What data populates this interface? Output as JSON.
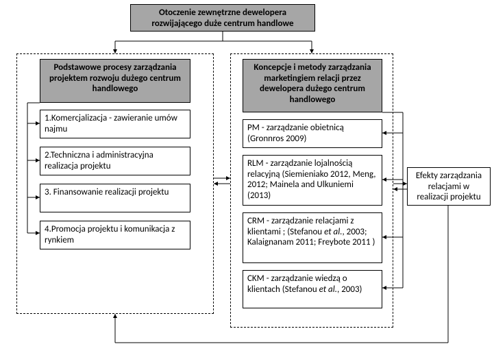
{
  "diagram": {
    "type": "flowchart",
    "font_size_pt": 11,
    "colors": {
      "header_bg": "#a6a6a6",
      "border": "#000000",
      "background": "#ffffff",
      "arrow": "#000000"
    },
    "top_header": "Otoczenie zewnętrzne dewelopera rozwijającego duże centrum handlowe",
    "left_group": {
      "title": "Podstawowe procesy zarządzania projektem rozwoju dużego centrum handlowego",
      "items": [
        "1.Komercjalizacja - zawieranie umów najmu",
        "2.Techniczna i administracyjna realizacja  projektu",
        "3. Finansowanie realizacji projektu",
        "4.Promocja projektu i komunikacja z rynkiem"
      ]
    },
    "right_group": {
      "title": "Koncepcje i metody zarządzania marketingiem relacji przez dewelopera dużego centrum handlowego",
      "items": [
        "PM - zarządzanie obietnicą (Gronnros 2009)",
        "RLM - zarządzanie lojalnością relacyjną (Siemieniako 2012, Meng, 2012; Mainela and Ulkuniemi (2013)",
        "CRM - zarządzanie relacjami z klientami ; (Stefanou et al., 2003; Kalaignanam 2011; Freybote 2011 )",
        "CKM - zarządzanie wiedzą o klientach (Stefanou et al., 2003)"
      ]
    },
    "effects_box": "Efekty zarządzania relacjami w realizacji projektu"
  }
}
